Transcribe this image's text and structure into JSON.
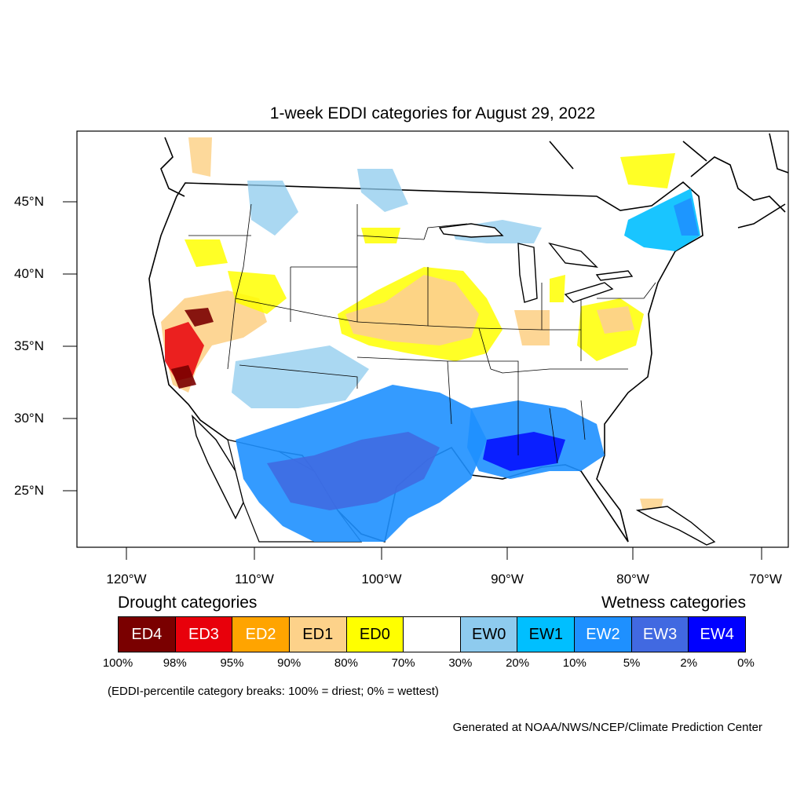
{
  "map": {
    "title": "1-week EDDI categories for August 29, 2022",
    "lat_ticks": [
      "45°N",
      "40°N",
      "35°N",
      "30°N",
      "25°N"
    ],
    "lon_ticks": [
      "120°W",
      "110°W",
      "100°W",
      "90°W",
      "80°W",
      "70°W"
    ]
  },
  "legend": {
    "drought_heading": "Drought categories",
    "wetness_heading": "Wetness categories",
    "categories": [
      {
        "label": "ED4",
        "color": "#7a0000",
        "text_color": "#ffffff"
      },
      {
        "label": "ED3",
        "color": "#e8000b",
        "text_color": "#ffffff"
      },
      {
        "label": "ED2",
        "color": "#ffa400",
        "text_color": "#ffffff"
      },
      {
        "label": "ED1",
        "color": "#fdd28a",
        "text_color": "#000000"
      },
      {
        "label": "ED0",
        "color": "#ffff00",
        "text_color": "#000000"
      },
      {
        "label": "",
        "color": "#ffffff",
        "text_color": "#000000"
      },
      {
        "label": "EW0",
        "color": "#8ecbee",
        "text_color": "#000000"
      },
      {
        "label": "EW1",
        "color": "#00bfff",
        "text_color": "#000000"
      },
      {
        "label": "EW2",
        "color": "#1e90ff",
        "text_color": "#ffffff"
      },
      {
        "label": "EW3",
        "color": "#4169e1",
        "text_color": "#ffffff"
      },
      {
        "label": "EW4",
        "color": "#0000ff",
        "text_color": "#ffffff"
      }
    ],
    "percent_breaks": [
      "100%",
      "98%",
      "95%",
      "90%",
      "80%",
      "70%",
      "30%",
      "20%",
      "10%",
      "5%",
      "2%",
      "0%"
    ],
    "note": "(EDDI-percentile category breaks: 100% = driest; 0% = wettest)"
  },
  "credit": "Generated at NOAA/NWS/NCEP/Climate Prediction Center"
}
